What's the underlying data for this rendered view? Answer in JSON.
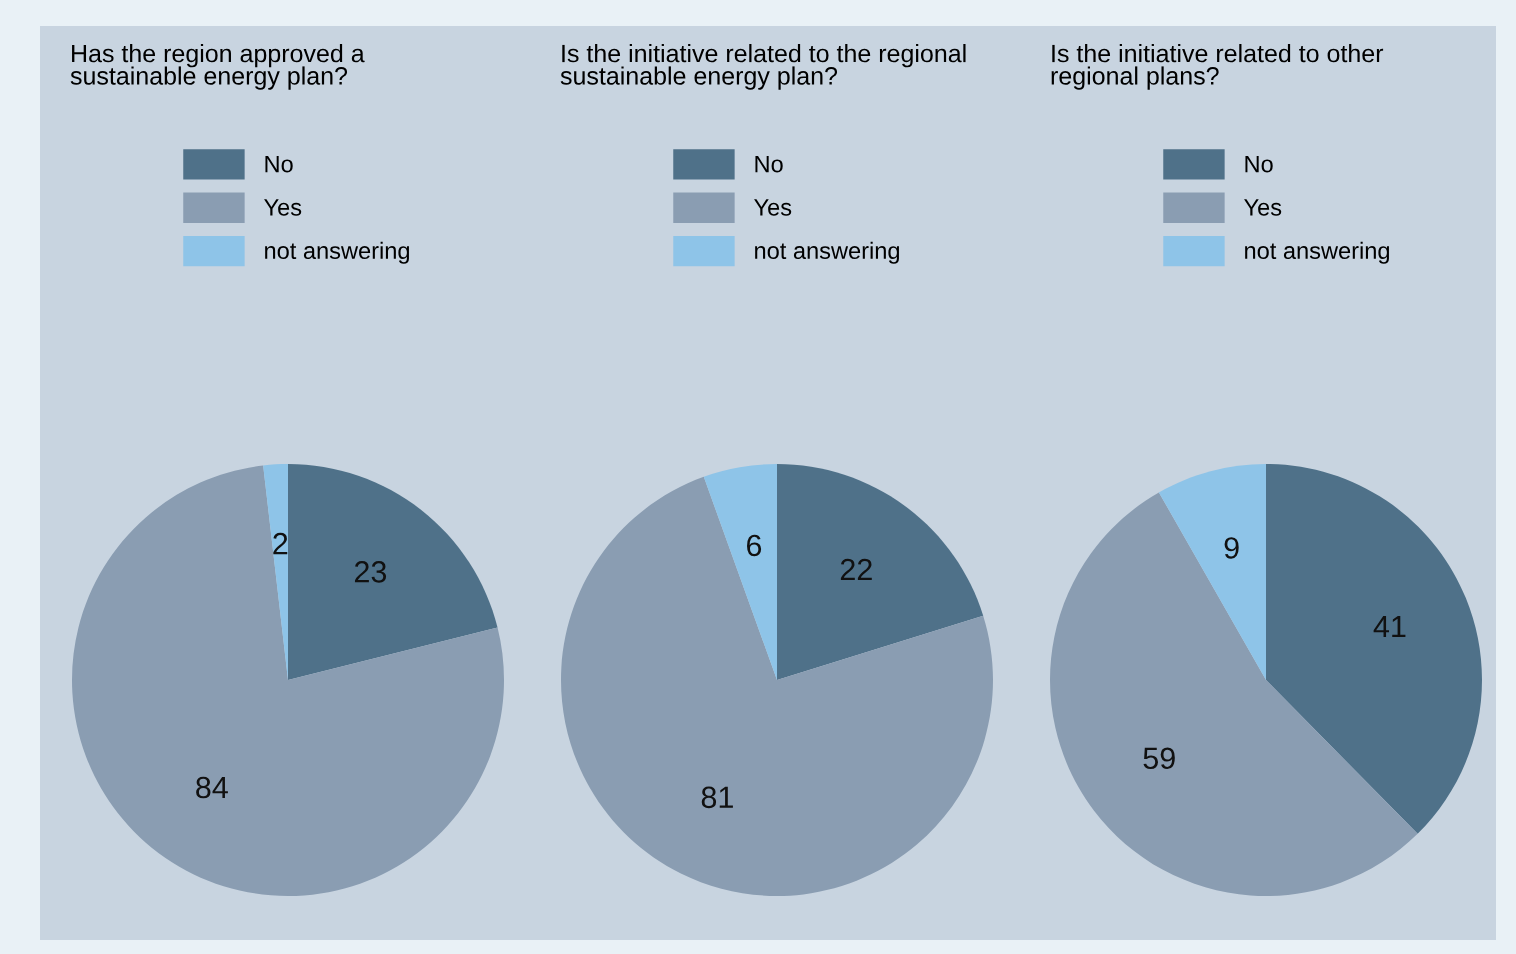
{
  "chart_data": [
    {
      "type": "pie",
      "title": "Has the region approved a\nsustainable energy plan?",
      "categories": [
        "No",
        "Yes",
        "not answering"
      ],
      "values": [
        23,
        84,
        2
      ],
      "colors": [
        "#4f7189",
        "#8a9db2",
        "#8ec4e8"
      ],
      "data_labels": true,
      "legend": "top"
    },
    {
      "type": "pie",
      "title": "Is the initiative related to the regional\nsustainable energy plan?",
      "categories": [
        "No",
        "Yes",
        "not answering"
      ],
      "values": [
        22,
        81,
        6
      ],
      "colors": [
        "#4f7189",
        "#8a9db2",
        "#8ec4e8"
      ],
      "data_labels": true,
      "legend": "top"
    },
    {
      "type": "pie",
      "title": "Is the initiative related to other\nregional plans?",
      "categories": [
        "No",
        "Yes",
        "not answering"
      ],
      "values": [
        41,
        59,
        9
      ],
      "colors": [
        "#4f7189",
        "#8a9db2",
        "#8ec4e8"
      ],
      "data_labels": true,
      "legend": "top"
    }
  ]
}
